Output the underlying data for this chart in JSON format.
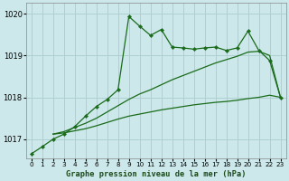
{
  "title": "Graphe pression niveau de la mer (hPa)",
  "bg_color": "#cce8ea",
  "grid_color": "#aacccc",
  "line_color": "#1a6b1a",
  "xlim": [
    -0.5,
    23.5
  ],
  "ylim": [
    1016.55,
    1020.25
  ],
  "yticks": [
    1017,
    1018,
    1019,
    1020
  ],
  "xticks": [
    0,
    1,
    2,
    3,
    4,
    5,
    6,
    7,
    8,
    9,
    10,
    11,
    12,
    13,
    14,
    15,
    16,
    17,
    18,
    19,
    20,
    21,
    22,
    23
  ],
  "s1_x": [
    0,
    1,
    2,
    3,
    4,
    5,
    6,
    7,
    8,
    9,
    10,
    11,
    12,
    13,
    14,
    15,
    16,
    17,
    18,
    19,
    20,
    21,
    22,
    23
  ],
  "s1_y": [
    1016.65,
    1016.82,
    1017.0,
    1017.12,
    1017.3,
    1017.55,
    1017.78,
    1017.95,
    1018.18,
    1019.93,
    1019.7,
    1019.48,
    1019.62,
    1019.2,
    1019.18,
    1019.15,
    1019.18,
    1019.2,
    1019.12,
    1019.18,
    1019.58,
    1019.12,
    1018.88,
    1018.0
  ],
  "s2_x": [
    2,
    3,
    4,
    5,
    6,
    7,
    8,
    9,
    10,
    11,
    12,
    13,
    14,
    15,
    16,
    17,
    18,
    19,
    20,
    21,
    22,
    23
  ],
  "s2_y": [
    1017.12,
    1017.18,
    1017.28,
    1017.38,
    1017.5,
    1017.65,
    1017.8,
    1017.95,
    1018.08,
    1018.18,
    1018.3,
    1018.42,
    1018.52,
    1018.62,
    1018.72,
    1018.82,
    1018.9,
    1018.98,
    1019.08,
    1019.1,
    1019.0,
    1018.0
  ],
  "s3_x": [
    2,
    3,
    4,
    5,
    6,
    7,
    8,
    9,
    10,
    11,
    12,
    13,
    14,
    15,
    16,
    17,
    18,
    19,
    20,
    21,
    22,
    23
  ],
  "s3_y": [
    1017.12,
    1017.15,
    1017.2,
    1017.25,
    1017.32,
    1017.4,
    1017.48,
    1017.55,
    1017.6,
    1017.65,
    1017.7,
    1017.74,
    1017.78,
    1017.82,
    1017.85,
    1017.88,
    1017.9,
    1017.93,
    1017.97,
    1018.0,
    1018.05,
    1018.0
  ]
}
